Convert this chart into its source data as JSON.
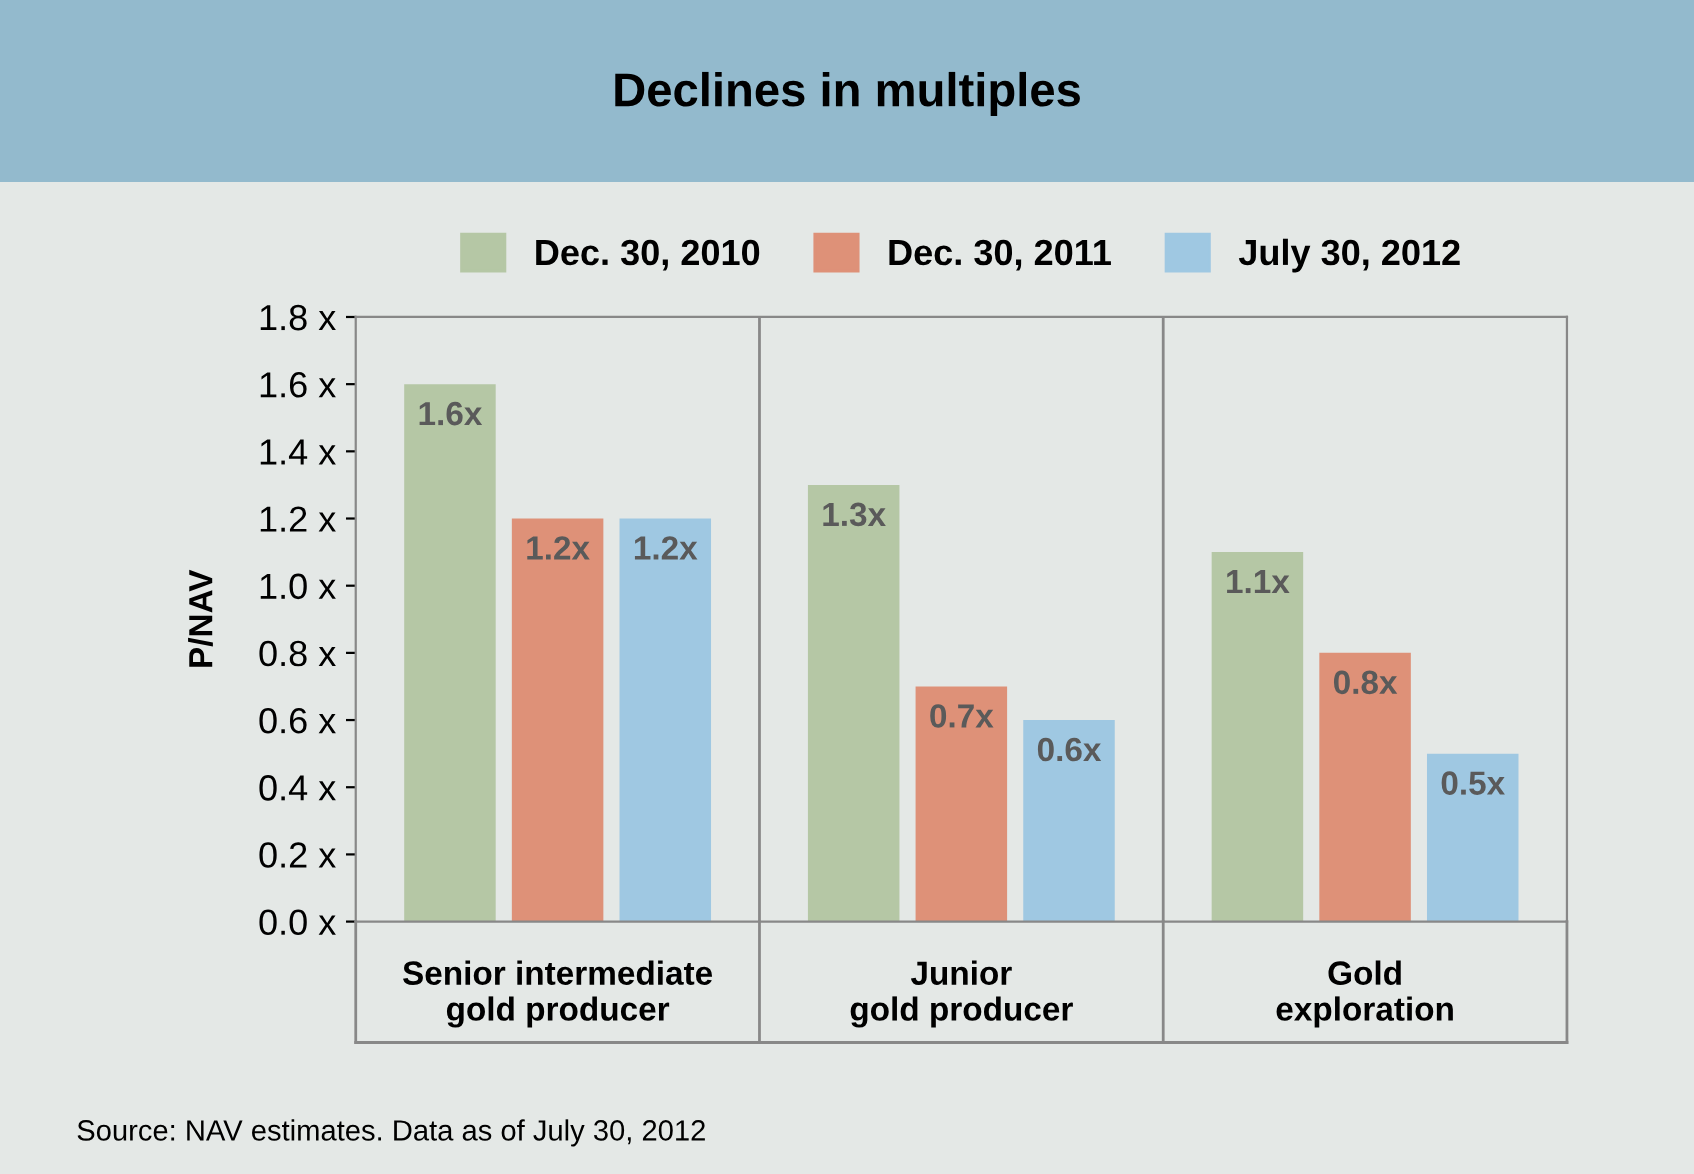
{
  "chart_data": {
    "type": "bar",
    "title": "Declines in multiples",
    "ylabel": "P/NAV",
    "categories": [
      "Senior intermediate\ngold producer",
      "Junior\ngold producer",
      "Gold\nexploration"
    ],
    "series": [
      {
        "name": "Dec. 30, 2010",
        "color": "#b5c7a5",
        "values": [
          1.6,
          1.3,
          1.1
        ],
        "value_labels": [
          "1.6x",
          "1.3x",
          "1.1x"
        ]
      },
      {
        "name": "Dec. 30, 2011",
        "color": "#de9178",
        "values": [
          1.2,
          0.7,
          0.8
        ],
        "value_labels": [
          "1.2x",
          "0.7x",
          "0.8x"
        ]
      },
      {
        "name": "July 30, 2012",
        "color": "#9fc8e2",
        "values": [
          1.2,
          0.6,
          0.5
        ],
        "value_labels": [
          "1.2x",
          "0.6x",
          "0.5x"
        ]
      }
    ],
    "ylim": [
      0,
      1.8
    ],
    "yticks": [
      {
        "value": 0,
        "label": "0.0 x"
      },
      {
        "value": 0.2,
        "label": "0.2 x"
      },
      {
        "value": 0.4,
        "label": "0.4 x"
      },
      {
        "value": 0.6,
        "label": "0.6 x"
      },
      {
        "value": 0.8,
        "label": "0.8 x"
      },
      {
        "value": 1.0,
        "label": "1.0 x"
      },
      {
        "value": 1.2,
        "label": "1.2 x"
      },
      {
        "value": 1.4,
        "label": "1.4 x"
      },
      {
        "value": 1.6,
        "label": "1.6 x"
      },
      {
        "value": 1.8,
        "label": "1.8 x"
      }
    ],
    "legend": "top",
    "annotations": [
      "Source: NAV estimates. Data as of July 30, 2012"
    ]
  }
}
